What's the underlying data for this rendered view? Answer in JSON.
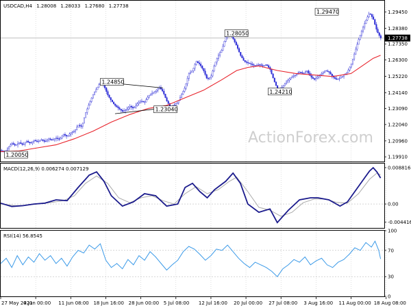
{
  "chart_data": [
    {
      "type": "candlestick",
      "header": {
        "symbol": "USDCAD,H4",
        "open": "1.28008",
        "high": "1.28033",
        "low": "1.27680",
        "close": "1.27738"
      },
      "ylim": [
        1.196,
        1.302
      ],
      "y_ticks": [
        "1.29450",
        "1.28380",
        "1.27350",
        "1.26300",
        "1.25220",
        "1.24140",
        "1.23090",
        "1.22040",
        "1.20960",
        "1.19910"
      ],
      "current_price_label": "1.27738",
      "annotations": [
        {
          "text": "1.29470",
          "x": 170.5,
          "y": 1.2947
        },
        {
          "text": "1.28050",
          "x": 121.5,
          "y": 1.2805
        },
        {
          "text": "1.24850",
          "x": 54,
          "y": 1.2485
        },
        {
          "text": "1.24210",
          "x": 145,
          "y": 1.2421
        },
        {
          "text": "1.23040",
          "x": 83,
          "y": 1.2304
        },
        {
          "text": "1.20050",
          "x": 2,
          "y": 1.2005
        }
      ],
      "close_path": [
        [
          0,
          1.2035
        ],
        [
          2,
          1.202
        ],
        [
          4,
          1.205
        ],
        [
          6,
          1.208
        ],
        [
          8,
          1.2065
        ],
        [
          10,
          1.2085
        ],
        [
          12,
          1.207
        ],
        [
          14,
          1.2095
        ],
        [
          16,
          1.208
        ],
        [
          18,
          1.21
        ],
        [
          20,
          1.209
        ],
        [
          22,
          1.2105
        ],
        [
          24,
          1.209
        ],
        [
          26,
          1.211
        ],
        [
          28,
          1.21
        ],
        [
          30,
          1.2115
        ],
        [
          32,
          1.2105
        ],
        [
          34,
          1.214
        ],
        [
          36,
          1.2125
        ],
        [
          38,
          1.215
        ],
        [
          40,
          1.216
        ],
        [
          42,
          1.22
        ],
        [
          44,
          1.219
        ],
        [
          46,
          1.228
        ],
        [
          48,
          1.234
        ],
        [
          50,
          1.24
        ],
        [
          52,
          1.244
        ],
        [
          54,
          1.248
        ],
        [
          56,
          1.246
        ],
        [
          58,
          1.24
        ],
        [
          60,
          1.236
        ],
        [
          62,
          1.233
        ],
        [
          64,
          1.231
        ],
        [
          66,
          1.229
        ],
        [
          68,
          1.23
        ],
        [
          70,
          1.2325
        ],
        [
          72,
          1.231
        ],
        [
          74,
          1.234
        ],
        [
          76,
          1.236
        ],
        [
          78,
          1.235
        ],
        [
          80,
          1.239
        ],
        [
          82,
          1.241
        ],
        [
          84,
          1.2425
        ],
        [
          86,
          1.245
        ],
        [
          88,
          1.242
        ],
        [
          90,
          1.236
        ],
        [
          92,
          1.232
        ],
        [
          94,
          1.233
        ],
        [
          96,
          1.235
        ],
        [
          98,
          1.24
        ],
        [
          100,
          1.245
        ],
        [
          102,
          1.254
        ],
        [
          104,
          1.256
        ],
        [
          106,
          1.262
        ],
        [
          108,
          1.26
        ],
        [
          110,
          1.256
        ],
        [
          112,
          1.25
        ],
        [
          114,
          1.252
        ],
        [
          116,
          1.26
        ],
        [
          118,
          1.266
        ],
        [
          120,
          1.27
        ],
        [
          122,
          1.278
        ],
        [
          124,
          1.28
        ],
        [
          126,
          1.277
        ],
        [
          128,
          1.272
        ],
        [
          130,
          1.266
        ],
        [
          132,
          1.262
        ],
        [
          134,
          1.261
        ],
        [
          136,
          1.26
        ],
        [
          138,
          1.259
        ],
        [
          140,
          1.26
        ],
        [
          142,
          1.259
        ],
        [
          144,
          1.26
        ],
        [
          146,
          1.257
        ],
        [
          148,
          1.25
        ],
        [
          150,
          1.244
        ],
        [
          152,
          1.244
        ],
        [
          154,
          1.247
        ],
        [
          156,
          1.25
        ],
        [
          158,
          1.252
        ],
        [
          160,
          1.253
        ],
        [
          162,
          1.255
        ],
        [
          164,
          1.254
        ],
        [
          166,
          1.256
        ],
        [
          168,
          1.252
        ],
        [
          170,
          1.25
        ],
        [
          172,
          1.252
        ],
        [
          174,
          1.254
        ],
        [
          176,
          1.256
        ],
        [
          178,
          1.255
        ],
        [
          180,
          1.252
        ],
        [
          182,
          1.25
        ],
        [
          184,
          1.251
        ],
        [
          186,
          1.253
        ],
        [
          188,
          1.255
        ],
        [
          190,
          1.26
        ],
        [
          192,
          1.268
        ],
        [
          194,
          1.276
        ],
        [
          196,
          1.283
        ],
        [
          198,
          1.289
        ],
        [
          200,
          1.294
        ],
        [
          202,
          1.29
        ],
        [
          204,
          1.282
        ],
        [
          206,
          1.2774
        ]
      ],
      "sma_path": [
        [
          0,
          1.2025
        ],
        [
          10,
          1.203
        ],
        [
          20,
          1.205
        ],
        [
          30,
          1.207
        ],
        [
          40,
          1.211
        ],
        [
          50,
          1.216
        ],
        [
          60,
          1.222
        ],
        [
          70,
          1.227
        ],
        [
          80,
          1.231
        ],
        [
          90,
          1.233
        ],
        [
          100,
          1.238
        ],
        [
          110,
          1.243
        ],
        [
          120,
          1.25
        ],
        [
          128,
          1.256
        ],
        [
          134,
          1.258
        ],
        [
          140,
          1.259
        ],
        [
          150,
          1.256
        ],
        [
          160,
          1.254
        ],
        [
          170,
          1.253
        ],
        [
          180,
          1.252
        ],
        [
          190,
          1.254
        ],
        [
          196,
          1.259
        ],
        [
          202,
          1.264
        ],
        [
          206,
          1.266
        ]
      ],
      "channel_lines": [
        [
          [
            54,
            1.2485
          ],
          [
            88,
            1.2445
          ]
        ],
        [
          [
            62,
            1.2275
          ],
          [
            90,
            1.2315
          ]
        ]
      ],
      "price_line": 1.27738
    },
    {
      "type": "line",
      "name": "MACD(12,26,9) 0.006274 0.007129",
      "ylim": [
        -0.0058,
        0.0098
      ],
      "y_ticks": [
        "0.008816",
        "0.00",
        "-0.004416"
      ],
      "macd": [
        [
          0,
          0.0002
        ],
        [
          6,
          -0.0006
        ],
        [
          12,
          -0.0004
        ],
        [
          18,
          0.0
        ],
        [
          24,
          0.0002
        ],
        [
          30,
          0.001
        ],
        [
          36,
          0.0008
        ],
        [
          42,
          0.004
        ],
        [
          48,
          0.007
        ],
        [
          52,
          0.0078
        ],
        [
          56,
          0.0055
        ],
        [
          60,
          0.002
        ],
        [
          66,
          -0.0005
        ],
        [
          72,
          0.0005
        ],
        [
          78,
          0.0025
        ],
        [
          84,
          0.002
        ],
        [
          90,
          -0.0005
        ],
        [
          96,
          0.0
        ],
        [
          100,
          0.004
        ],
        [
          104,
          0.005
        ],
        [
          108,
          0.003
        ],
        [
          112,
          0.0015
        ],
        [
          116,
          0.0035
        ],
        [
          122,
          0.0055
        ],
        [
          126,
          0.0075
        ],
        [
          130,
          0.005
        ],
        [
          134,
          0.0
        ],
        [
          140,
          -0.002
        ],
        [
          146,
          -0.0012
        ],
        [
          150,
          -0.0045
        ],
        [
          156,
          -0.0015
        ],
        [
          162,
          0.001
        ],
        [
          168,
          0.0015
        ],
        [
          172,
          0.0015
        ],
        [
          178,
          0.001
        ],
        [
          184,
          -0.0005
        ],
        [
          188,
          0.0005
        ],
        [
          192,
          0.003
        ],
        [
          196,
          0.0055
        ],
        [
          200,
          0.008
        ],
        [
          202,
          0.0088
        ],
        [
          204,
          0.0078
        ],
        [
          206,
          0.0063
        ]
      ],
      "signal": [
        [
          0,
          0.0
        ],
        [
          8,
          -0.0004
        ],
        [
          14,
          -0.0003
        ],
        [
          22,
          0.0001
        ],
        [
          28,
          0.0004
        ],
        [
          34,
          0.0008
        ],
        [
          40,
          0.002
        ],
        [
          46,
          0.005
        ],
        [
          52,
          0.0068
        ],
        [
          58,
          0.005
        ],
        [
          64,
          0.0015
        ],
        [
          70,
          0.0003
        ],
        [
          76,
          0.0015
        ],
        [
          82,
          0.002
        ],
        [
          88,
          0.0008
        ],
        [
          94,
          0.0
        ],
        [
          100,
          0.0025
        ],
        [
          106,
          0.0042
        ],
        [
          112,
          0.0025
        ],
        [
          118,
          0.0035
        ],
        [
          124,
          0.0055
        ],
        [
          128,
          0.0065
        ],
        [
          134,
          0.003
        ],
        [
          140,
          -0.0008
        ],
        [
          146,
          -0.0015
        ],
        [
          152,
          -0.003
        ],
        [
          158,
          -0.002
        ],
        [
          164,
          0.0003
        ],
        [
          170,
          0.0012
        ],
        [
          176,
          0.0012
        ],
        [
          182,
          0.0004
        ],
        [
          188,
          0.0002
        ],
        [
          194,
          0.0025
        ],
        [
          200,
          0.006
        ],
        [
          204,
          0.0075
        ],
        [
          206,
          0.0071
        ]
      ]
    },
    {
      "type": "line",
      "name": "RSI(14) 56.8545",
      "ylim": [
        0,
        100
      ],
      "y_ticks": [
        "100",
        "70",
        "30",
        "0"
      ],
      "ref_lines": [
        70,
        30
      ],
      "rsi": [
        [
          0,
          50
        ],
        [
          3,
          58
        ],
        [
          6,
          44
        ],
        [
          9,
          62
        ],
        [
          12,
          48
        ],
        [
          15,
          60
        ],
        [
          18,
          52
        ],
        [
          21,
          65
        ],
        [
          24,
          55
        ],
        [
          27,
          62
        ],
        [
          30,
          50
        ],
        [
          33,
          58
        ],
        [
          36,
          46
        ],
        [
          39,
          60
        ],
        [
          42,
          70
        ],
        [
          45,
          66
        ],
        [
          48,
          78
        ],
        [
          51,
          72
        ],
        [
          54,
          80
        ],
        [
          57,
          55
        ],
        [
          60,
          44
        ],
        [
          63,
          50
        ],
        [
          66,
          42
        ],
        [
          69,
          56
        ],
        [
          72,
          48
        ],
        [
          75,
          62
        ],
        [
          78,
          55
        ],
        [
          81,
          68
        ],
        [
          84,
          60
        ],
        [
          87,
          50
        ],
        [
          90,
          40
        ],
        [
          93,
          48
        ],
        [
          96,
          55
        ],
        [
          99,
          68
        ],
        [
          102,
          76
        ],
        [
          105,
          72
        ],
        [
          108,
          64
        ],
        [
          111,
          55
        ],
        [
          114,
          62
        ],
        [
          117,
          72
        ],
        [
          120,
          70
        ],
        [
          123,
          78
        ],
        [
          126,
          68
        ],
        [
          129,
          58
        ],
        [
          132,
          50
        ],
        [
          135,
          44
        ],
        [
          138,
          52
        ],
        [
          141,
          48
        ],
        [
          144,
          44
        ],
        [
          147,
          38
        ],
        [
          150,
          30
        ],
        [
          153,
          42
        ],
        [
          156,
          48
        ],
        [
          159,
          56
        ],
        [
          162,
          52
        ],
        [
          165,
          60
        ],
        [
          168,
          48
        ],
        [
          171,
          54
        ],
        [
          174,
          58
        ],
        [
          177,
          48
        ],
        [
          180,
          44
        ],
        [
          183,
          52
        ],
        [
          186,
          56
        ],
        [
          189,
          64
        ],
        [
          192,
          74
        ],
        [
          195,
          70
        ],
        [
          198,
          82
        ],
        [
          201,
          75
        ],
        [
          203,
          84
        ],
        [
          205,
          70
        ],
        [
          206,
          57
        ]
      ]
    }
  ],
  "x_ticks": [
    "27 May 2021",
    "4 Jun 00:00",
    "11 Jun 08:00",
    "18 Jun 16:00",
    "28 Jun 00:00",
    "5 Jul 08:00",
    "12 Jul 16:00",
    "20 Jul 00:00",
    "27 Jul 08:00",
    "3 Aug 16:00",
    "11 Aug 00:00",
    "18 Aug 08:00"
  ],
  "x_tick_positions": [
    0,
    19,
    38,
    57,
    76,
    95,
    114,
    133,
    152,
    171,
    190,
    209
  ],
  "watermark": "ActionForex.com",
  "colors": {
    "candle_up": "#2b2bd6",
    "candle_down": "#2b2bd6",
    "sma": "#e8222a",
    "macd": "#1a1a8c",
    "signal": "#aaaaaa",
    "rsi": "#3b9ae8",
    "grid": "#c8c8c8",
    "frame": "#000000"
  }
}
